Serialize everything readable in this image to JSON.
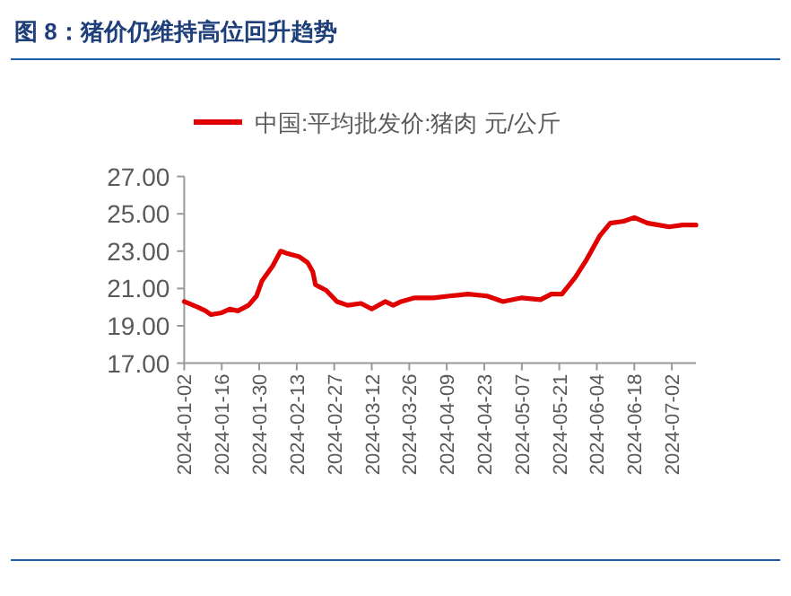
{
  "chart_data": {
    "type": "line",
    "title": "图 8：猪价仍维持高位回升趋势",
    "x": [
      "2024-01-02",
      "2024-01-07",
      "2024-01-10",
      "2024-01-12",
      "2024-01-16",
      "2024-01-19",
      "2024-01-22",
      "2024-01-26",
      "2024-01-29",
      "2024-01-31",
      "2024-02-04",
      "2024-02-07",
      "2024-02-09",
      "2024-02-14",
      "2024-02-17",
      "2024-02-19",
      "2024-02-20",
      "2024-02-24",
      "2024-02-28",
      "2024-03-03",
      "2024-03-08",
      "2024-03-12",
      "2024-03-17",
      "2024-03-20",
      "2024-03-23",
      "2024-03-28",
      "2024-04-04",
      "2024-04-10",
      "2024-04-17",
      "2024-04-24",
      "2024-04-30",
      "2024-05-07",
      "2024-05-14",
      "2024-05-18",
      "2024-05-22",
      "2024-05-27",
      "2024-05-31",
      "2024-06-05",
      "2024-06-09",
      "2024-06-14",
      "2024-06-18",
      "2024-06-23",
      "2024-06-27",
      "2024-07-01",
      "2024-07-06",
      "2024-07-11"
    ],
    "series": [
      {
        "name": "中国:平均批发价:猪肉 元/公斤",
        "color": "#e00000",
        "values": [
          20.3,
          20.0,
          19.8,
          19.6,
          19.7,
          19.9,
          19.8,
          20.1,
          20.6,
          21.4,
          22.2,
          23.0,
          22.9,
          22.7,
          22.4,
          21.9,
          21.2,
          20.9,
          20.3,
          20.1,
          20.2,
          19.9,
          20.3,
          20.1,
          20.3,
          20.5,
          20.5,
          20.6,
          20.7,
          20.6,
          20.3,
          20.5,
          20.4,
          20.7,
          20.7,
          21.6,
          22.5,
          23.8,
          24.5,
          24.6,
          24.8,
          24.5,
          24.4,
          24.3,
          24.4,
          24.4
        ]
      }
    ],
    "xlim": [
      "2024-01-02",
      "2024-07-11"
    ],
    "xticks": [
      "2024-01-02",
      "2024-01-16",
      "2024-01-30",
      "2024-02-13",
      "2024-02-27",
      "2024-03-12",
      "2024-03-26",
      "2024-04-09",
      "2024-04-23",
      "2024-05-07",
      "2024-05-21",
      "2024-06-04",
      "2024-06-18",
      "2024-07-02"
    ],
    "ylim": [
      17,
      27
    ],
    "yticks": [
      {
        "value": 17,
        "label": "17.00"
      },
      {
        "value": 19,
        "label": "19.00"
      },
      {
        "value": 21,
        "label": "21.00"
      },
      {
        "value": 23,
        "label": "23.00"
      },
      {
        "value": 25,
        "label": "25.00"
      },
      {
        "value": 27,
        "label": "27.00"
      }
    ],
    "legend": "top",
    "grid": false,
    "marker": "none",
    "line_style": "solid"
  }
}
